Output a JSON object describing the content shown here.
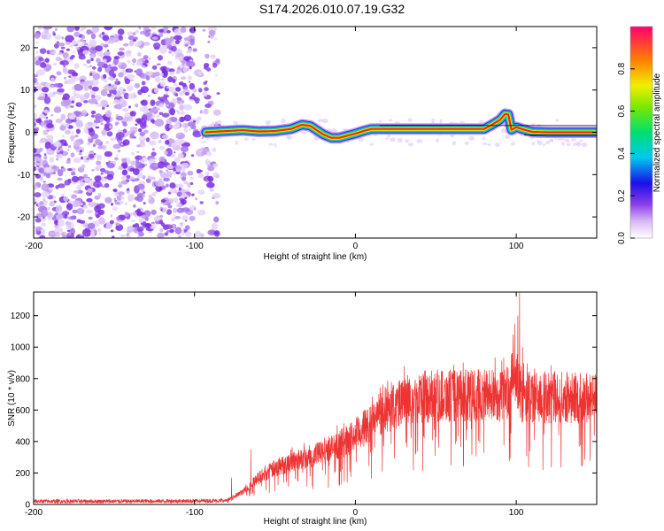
{
  "title": "S174.2026.010.07.19.G32",
  "chart_data": [
    {
      "type": "heatmap",
      "xlabel": "Height of straight line (km)",
      "ylabel": "Frequency (Hz)",
      "xlim": [
        -200,
        150
      ],
      "ylim": [
        -25,
        25
      ],
      "xticks": [
        -200,
        -100,
        0,
        100
      ],
      "yticks": [
        -20,
        -10,
        0,
        10,
        20
      ],
      "colorbar_label": "Normalized spectral amplitude",
      "colorbar_range": [
        0,
        1
      ],
      "colorbar_ticks": [
        0.0,
        0.2,
        0.4,
        0.6,
        0.8
      ],
      "noise_region_x": [
        -200,
        -85
      ],
      "ridge": {
        "x": [
          -93,
          -85,
          -80,
          -70,
          -60,
          -50,
          -40,
          -33,
          -28,
          -24,
          -20,
          -15,
          -10,
          -5,
          0,
          5,
          10,
          20,
          40,
          60,
          80,
          85,
          90,
          93,
          95,
          97,
          100,
          105,
          110,
          120,
          150
        ],
        "freq": [
          0,
          0.2,
          0.3,
          0.5,
          0.2,
          0.3,
          0.8,
          1.8,
          1.5,
          0.5,
          -0.5,
          -1.3,
          -1.3,
          -0.8,
          -0.3,
          0.3,
          0.8,
          0.8,
          0.8,
          0.8,
          0.8,
          1.8,
          3.0,
          4.3,
          4.2,
          0.6,
          1.2,
          0.6,
          0.1,
          0,
          0
        ]
      }
    },
    {
      "type": "line",
      "xlabel": "Height of straight line (km)",
      "ylabel": "SNR (10 * v/v)",
      "xlim": [
        -200,
        150
      ],
      "ylim": [
        0,
        1350
      ],
      "xticks": [
        -200,
        -100,
        0,
        100
      ],
      "yticks": [
        0,
        200,
        400,
        600,
        800,
        1000,
        1200
      ],
      "series": [
        {
          "name": "SNR",
          "color": "#ee3333",
          "x": [
            -200,
            -150,
            -100,
            -80,
            -70,
            -60,
            -50,
            -40,
            -30,
            -20,
            -10,
            0,
            10,
            20,
            30,
            40,
            50,
            60,
            70,
            80,
            90,
            95,
            98,
            100,
            102,
            105,
            110,
            120,
            130,
            140,
            150
          ],
          "mean": [
            20,
            20,
            22,
            25,
            80,
            170,
            230,
            270,
            300,
            330,
            380,
            440,
            520,
            600,
            650,
            680,
            690,
            690,
            690,
            700,
            690,
            720,
            800,
            800,
            700,
            680,
            680,
            680,
            680,
            680,
            680
          ],
          "spikes": [
            {
              "x": -77,
              "y": 170
            },
            {
              "x": -65,
              "y": 350
            },
            {
              "x": 98,
              "y": 1080
            },
            {
              "x": 99,
              "y": 1150
            },
            {
              "x": 100,
              "y": 900
            },
            {
              "x": 101,
              "y": 1200
            },
            {
              "x": 102,
              "y": 1345
            },
            {
              "x": 104,
              "y": 1000
            }
          ]
        }
      ]
    }
  ]
}
